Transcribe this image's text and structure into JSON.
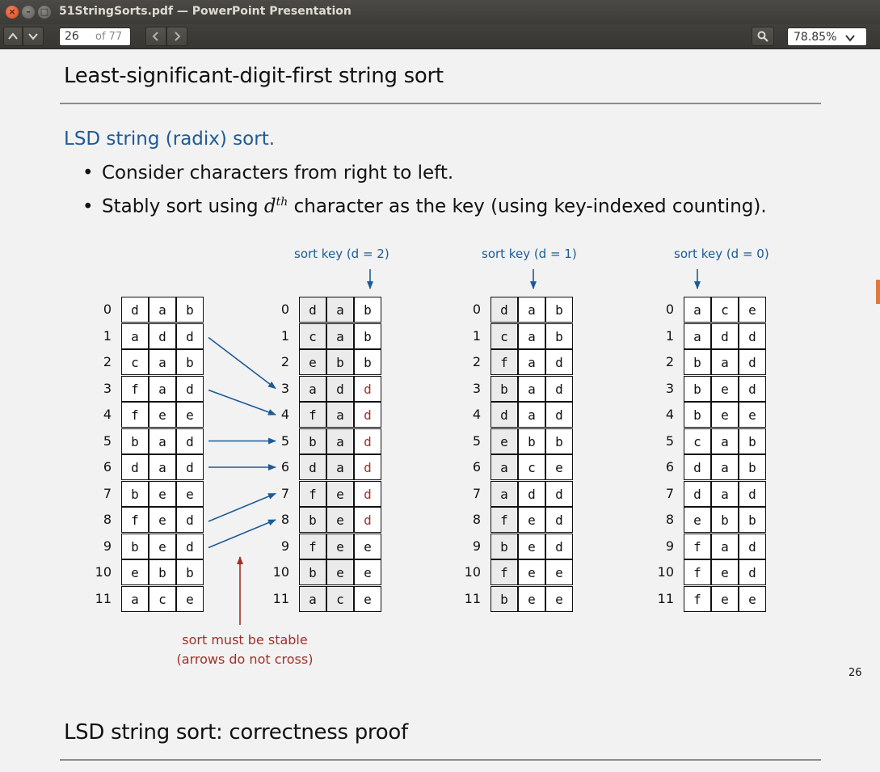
{
  "window": {
    "title": "51StringSorts.pdf — PowerPoint Presentation"
  },
  "toolbar": {
    "page_current": "26",
    "page_of": "of 77",
    "zoom": "78.85%"
  },
  "slide": {
    "title": "Least-significant-digit-first string sort",
    "subtitle": "LSD string (radix) sort.",
    "bullet1": "Consider characters from right to left.",
    "bullet2_pre": "Stably sort using ",
    "bullet2_var": "d",
    "bullet2_sup": "th",
    "bullet2_post": " character as the key (using key-indexed counting).",
    "sortkey_labels": [
      "sort key (d = 2)",
      "sort key (d = 1)",
      "sort key (d = 0)"
    ],
    "indices": [
      "0",
      "1",
      "2",
      "3",
      "4",
      "5",
      "6",
      "7",
      "8",
      "9",
      "10",
      "11"
    ],
    "tables": [
      [
        "dab",
        "add",
        "cab",
        "fad",
        "fee",
        "bad",
        "dad",
        "bee",
        "fed",
        "bed",
        "ebb",
        "ace"
      ],
      [
        "dab",
        "cab",
        "ebb",
        "add",
        "fad",
        "bad",
        "dad",
        "fed",
        "bed",
        "fee",
        "bee",
        "ace"
      ],
      [
        "dab",
        "cab",
        "fad",
        "bad",
        "dad",
        "ebb",
        "ace",
        "add",
        "fed",
        "bed",
        "fee",
        "bee"
      ],
      [
        "ace",
        "add",
        "bad",
        "bed",
        "bee",
        "cab",
        "dab",
        "dad",
        "ebb",
        "fad",
        "fed",
        "fee"
      ]
    ],
    "note_line1": "sort must be stable",
    "note_line2": "(arrows do not cross)",
    "page_number": "26",
    "next_title": "LSD string sort:  correctness proof"
  },
  "colors": {
    "accent_blue": "#1c5b97",
    "note_red": "#a03028",
    "highlight_red": "#a03028"
  }
}
